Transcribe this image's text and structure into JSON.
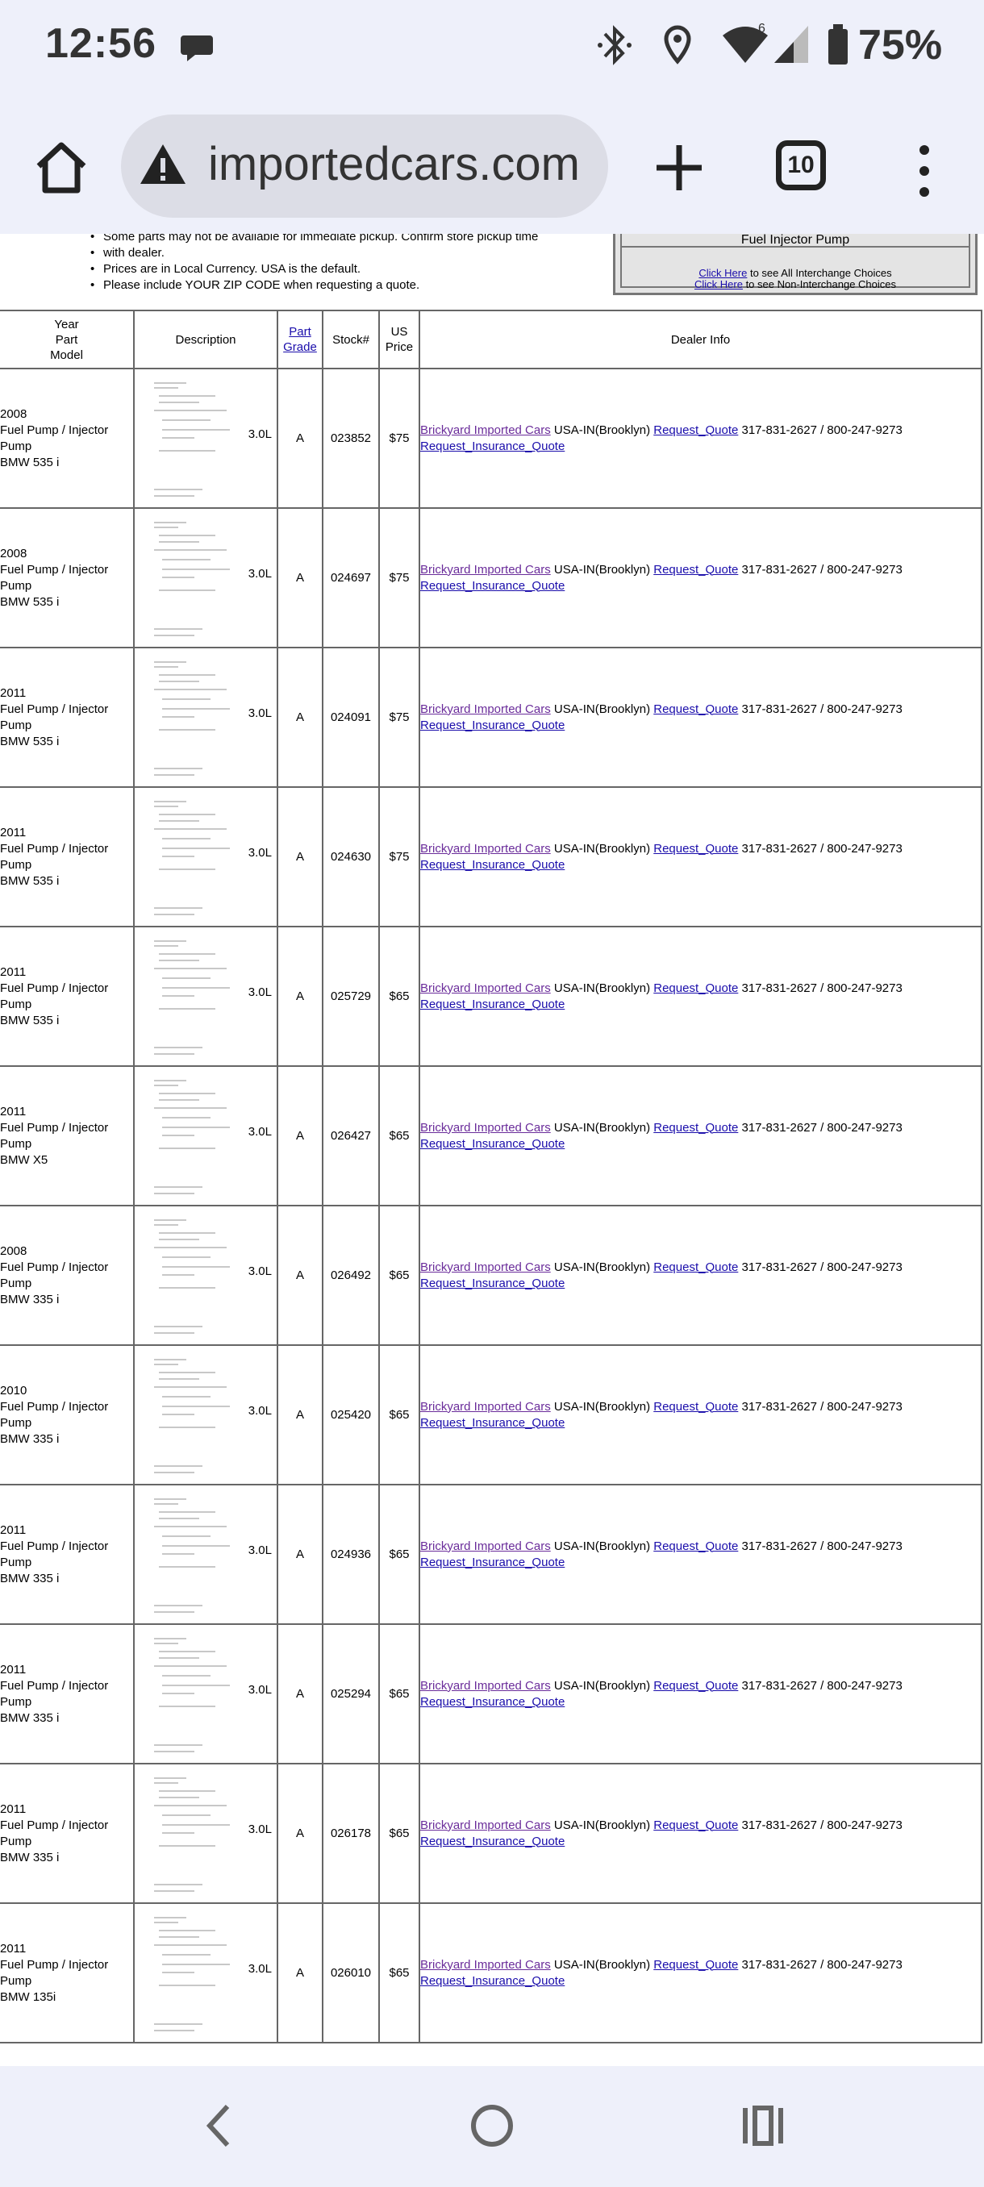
{
  "status_bar": {
    "time": "12:56",
    "battery_percent": "75%",
    "icons": [
      "chat-bubble-icon",
      "bluetooth-icon",
      "location-icon",
      "wifi-icon",
      "signal-icon",
      "battery-icon"
    ],
    "wifi_badge": "6"
  },
  "browser": {
    "url": "importedcars.com",
    "tab_count": "10",
    "security_icon": "warning-triangle-icon"
  },
  "notes": [
    "Some parts may not be available for immediate pickup. Confirm store pickup time",
    "with dealer.",
    "Prices are in Local Currency. USA is the default.",
    "Please include YOUR ZIP CODE when requesting a quote."
  ],
  "interchange_box": {
    "title": "Fuel Injector Pump",
    "line1_link": "Click Here",
    "line1_text": " to see All Interchange Choices",
    "line2_link": "Click Here",
    "line2_text": " to see Non-Interchange Choices"
  },
  "table": {
    "headers": {
      "model_line1": "Year",
      "model_line2": "Part",
      "model_line3": "Model",
      "description": "Description",
      "grade_line1": "Part",
      "grade_line2": "Grade",
      "stock": "Stock#",
      "price_line1": "US",
      "price_line2": "Price",
      "dealer": "Dealer Info"
    },
    "rows": [
      {
        "year": "2008",
        "part1": "Fuel Pump / Injector",
        "part2": "Pump",
        "model": "BMW 535 i",
        "engine": "3.0L",
        "grade": "A",
        "stock": "023852",
        "price": "$75",
        "dealer_name": "Brickyard Imported Cars",
        "location": " USA-IN(Brooklyn) ",
        "quote": "Request_Quote",
        "phone": " 317-831-2627 / 800-247-9273",
        "insurance": "Request_Insurance_Quote"
      },
      {
        "year": "2008",
        "part1": "Fuel Pump / Injector",
        "part2": "Pump",
        "model": "BMW 535 i",
        "engine": "3.0L",
        "grade": "A",
        "stock": "024697",
        "price": "$75",
        "dealer_name": "Brickyard Imported Cars",
        "location": " USA-IN(Brooklyn) ",
        "quote": "Request_Quote",
        "phone": " 317-831-2627 / 800-247-9273",
        "insurance": "Request_Insurance_Quote"
      },
      {
        "year": "2011",
        "part1": "Fuel Pump / Injector",
        "part2": "Pump",
        "model": "BMW 535 i",
        "engine": "3.0L",
        "grade": "A",
        "stock": "024091",
        "price": "$75",
        "dealer_name": "Brickyard Imported Cars",
        "location": " USA-IN(Brooklyn) ",
        "quote": "Request_Quote",
        "phone": " 317-831-2627 / 800-247-9273",
        "insurance": "Request_Insurance_Quote"
      },
      {
        "year": "2011",
        "part1": "Fuel Pump / Injector",
        "part2": "Pump",
        "model": "BMW 535 i",
        "engine": "3.0L",
        "grade": "A",
        "stock": "024630",
        "price": "$75",
        "dealer_name": "Brickyard Imported Cars",
        "location": " USA-IN(Brooklyn) ",
        "quote": "Request_Quote",
        "phone": " 317-831-2627 / 800-247-9273",
        "insurance": "Request_Insurance_Quote"
      },
      {
        "year": "2011",
        "part1": "Fuel Pump / Injector",
        "part2": "Pump",
        "model": "BMW 535 i",
        "engine": "3.0L",
        "grade": "A",
        "stock": "025729",
        "price": "$65",
        "dealer_name": "Brickyard Imported Cars",
        "location": " USA-IN(Brooklyn) ",
        "quote": "Request_Quote",
        "phone": " 317-831-2627 / 800-247-9273",
        "insurance": "Request_Insurance_Quote"
      },
      {
        "year": "2011",
        "part1": "Fuel Pump / Injector",
        "part2": "Pump",
        "model": "BMW X5",
        "engine": "3.0L",
        "grade": "A",
        "stock": "026427",
        "price": "$65",
        "dealer_name": "Brickyard Imported Cars",
        "location": " USA-IN(Brooklyn) ",
        "quote": "Request_Quote",
        "phone": " 317-831-2627 / 800-247-9273",
        "insurance": "Request_Insurance_Quote"
      },
      {
        "year": "2008",
        "part1": "Fuel Pump / Injector",
        "part2": "Pump",
        "model": "BMW 335 i",
        "engine": "3.0L",
        "grade": "A",
        "stock": "026492",
        "price": "$65",
        "dealer_name": "Brickyard Imported Cars",
        "location": " USA-IN(Brooklyn) ",
        "quote": "Request_Quote",
        "phone": " 317-831-2627 / 800-247-9273",
        "insurance": "Request_Insurance_Quote"
      },
      {
        "year": "2010",
        "part1": "Fuel Pump / Injector",
        "part2": "Pump",
        "model": "BMW 335 i",
        "engine": "3.0L",
        "grade": "A",
        "stock": "025420",
        "price": "$65",
        "dealer_name": "Brickyard Imported Cars",
        "location": " USA-IN(Brooklyn) ",
        "quote": "Request_Quote",
        "phone": " 317-831-2627 / 800-247-9273",
        "insurance": "Request_Insurance_Quote"
      },
      {
        "year": "2011",
        "part1": "Fuel Pump / Injector",
        "part2": "Pump",
        "model": "BMW 335 i",
        "engine": "3.0L",
        "grade": "A",
        "stock": "024936",
        "price": "$65",
        "dealer_name": "Brickyard Imported Cars",
        "location": " USA-IN(Brooklyn) ",
        "quote": "Request_Quote",
        "phone": " 317-831-2627 / 800-247-9273",
        "insurance": "Request_Insurance_Quote"
      },
      {
        "year": "2011",
        "part1": "Fuel Pump / Injector",
        "part2": "Pump",
        "model": "BMW 335 i",
        "engine": "3.0L",
        "grade": "A",
        "stock": "025294",
        "price": "$65",
        "dealer_name": "Brickyard Imported Cars",
        "location": " USA-IN(Brooklyn) ",
        "quote": "Request_Quote",
        "phone": " 317-831-2627 / 800-247-9273",
        "insurance": "Request_Insurance_Quote"
      },
      {
        "year": "2011",
        "part1": "Fuel Pump / Injector",
        "part2": "Pump",
        "model": "BMW 335 i",
        "engine": "3.0L",
        "grade": "A",
        "stock": "026178",
        "price": "$65",
        "dealer_name": "Brickyard Imported Cars",
        "location": " USA-IN(Brooklyn) ",
        "quote": "Request_Quote",
        "phone": " 317-831-2627 / 800-247-9273",
        "insurance": "Request_Insurance_Quote"
      },
      {
        "year": "2011",
        "part1": "Fuel Pump / Injector",
        "part2": "Pump",
        "model": "BMW 135i",
        "engine": "3.0L",
        "grade": "A",
        "stock": "026010",
        "price": "$65",
        "dealer_name": "Brickyard Imported Cars",
        "location": " USA-IN(Brooklyn) ",
        "quote": "Request_Quote",
        "phone": " 317-831-2627 / 800-247-9273",
        "insurance": "Request_Insurance_Quote"
      }
    ]
  },
  "nav_bar": {
    "icons": [
      "back-icon",
      "home-circle-icon",
      "recents-icon"
    ]
  },
  "colors": {
    "chrome_bg": "#eef0fa",
    "url_pill": "#dcdde6",
    "link": "#1a0dab",
    "visited_link": "#6a2c9a"
  }
}
